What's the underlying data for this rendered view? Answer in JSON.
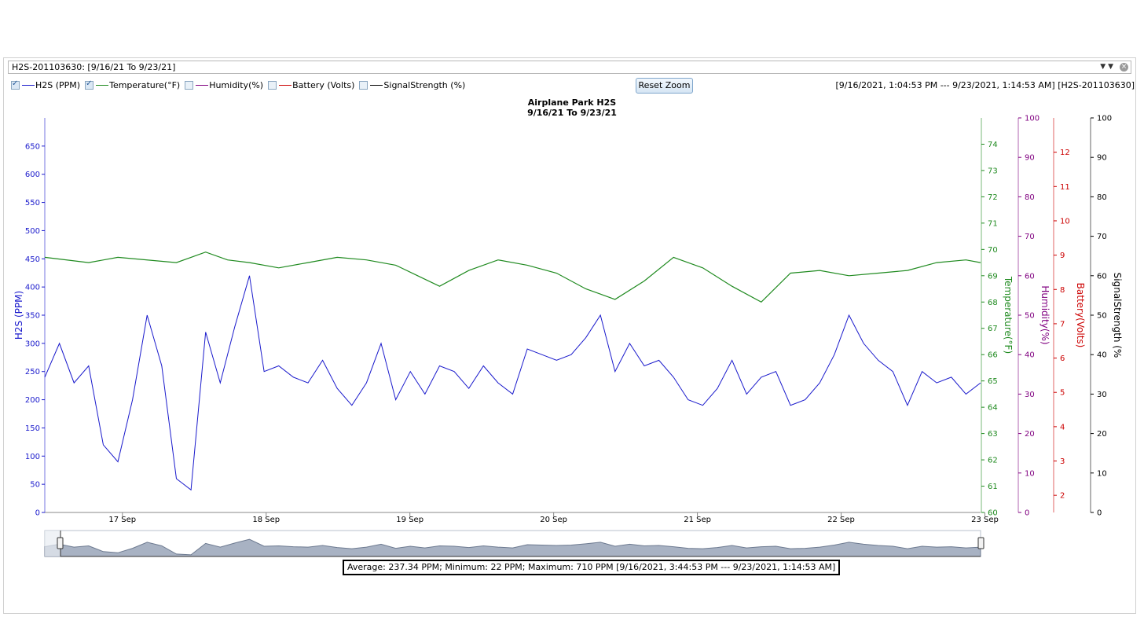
{
  "selector": {
    "value": "H2S-201103630:  [9/16/21 To 9/23/21]"
  },
  "legend": [
    {
      "label": "H2S (PPM)",
      "checked": true,
      "color": "#1a1acc"
    },
    {
      "label": "Temperature(°F)",
      "checked": true,
      "color": "#1f8a1f"
    },
    {
      "label": "Humidity(%)",
      "checked": false,
      "color": "#800080"
    },
    {
      "label": "Battery (Volts)",
      "checked": false,
      "color": "#cc0000"
    },
    {
      "label": "SignalStrength (%)",
      "checked": false,
      "color": "#000000"
    }
  ],
  "reset_label": "Reset Zoom",
  "range_label": "[9/16/2021, 1:04:53 PM ---  9/23/2021, 1:14:53 AM] [H2S-201103630]",
  "stats_label": "Average: 237.34 PPM;  Minimum: 22 PPM;  Maximum: 710 PPM [9/16/2021, 3:44:53 PM ---  9/23/2021, 1:14:53 AM]",
  "chart_data": {
    "type": "line",
    "title": "Airplane Park H2S",
    "subtitle": "9/16/21 To 9/23/21",
    "x_ticks": [
      "17 Sep",
      "18 Sep",
      "19 Sep",
      "20 Sep",
      "21 Sep",
      "22 Sep",
      "23 Sep"
    ],
    "x_range": [
      "9/16/2021 13:04",
      "9/23/2021 01:14"
    ],
    "axes": [
      {
        "id": "h2s",
        "label": "H2S (PPM)",
        "range": [
          0,
          700
        ],
        "ticks": [
          0,
          50,
          100,
          150,
          200,
          250,
          300,
          350,
          400,
          450,
          500,
          550,
          600,
          650
        ],
        "color": "#1a1acc"
      },
      {
        "id": "temp",
        "label": "Temperature(°F)",
        "range": [
          60,
          75
        ],
        "ticks": [
          60,
          61,
          62,
          63,
          64,
          65,
          66,
          67,
          68,
          69,
          70,
          71,
          72,
          73,
          74
        ],
        "color": "#1f8a1f"
      },
      {
        "id": "hum",
        "label": "Humidity(%)",
        "range": [
          0,
          100
        ],
        "ticks": [
          0,
          10,
          20,
          30,
          40,
          50,
          60,
          70,
          80,
          90,
          100
        ],
        "color": "#800080"
      },
      {
        "id": "bat",
        "label": "Battery(Volts)",
        "range": [
          1.5,
          13
        ],
        "ticks": [
          2,
          3,
          4,
          5,
          6,
          7,
          8,
          9,
          10,
          11,
          12
        ],
        "color": "#cc0000"
      },
      {
        "id": "sig",
        "label": "SignalStrength (%",
        "range": [
          0,
          100
        ],
        "ticks": [
          0,
          10,
          20,
          30,
          40,
          50,
          60,
          70,
          80,
          90,
          100
        ],
        "color": "#000000"
      }
    ],
    "series": [
      {
        "name": "H2S (PPM)",
        "axis": "h2s",
        "color": "#1a1acc",
        "x_day": [
          0.0,
          0.1,
          0.2,
          0.3,
          0.4,
          0.5,
          0.6,
          0.7,
          0.8,
          0.9,
          1.0,
          1.1,
          1.2,
          1.3,
          1.4,
          1.5,
          1.6,
          1.7,
          1.8,
          1.9,
          2.0,
          2.1,
          2.2,
          2.3,
          2.4,
          2.5,
          2.6,
          2.7,
          2.8,
          2.9,
          3.0,
          3.1,
          3.2,
          3.3,
          3.4,
          3.5,
          3.6,
          3.7,
          3.8,
          3.9,
          4.0,
          4.1,
          4.2,
          4.3,
          4.4,
          4.5,
          4.6,
          4.7,
          4.8,
          4.9,
          5.0,
          5.1,
          5.2,
          5.3,
          5.4,
          5.5,
          5.6,
          5.7,
          5.8,
          5.9,
          6.0,
          6.1,
          6.2,
          6.3,
          6.4
        ],
        "values": [
          240,
          300,
          230,
          260,
          120,
          90,
          200,
          350,
          260,
          60,
          40,
          320,
          230,
          330,
          420,
          250,
          260,
          240,
          230,
          270,
          220,
          190,
          230,
          300,
          200,
          250,
          210,
          260,
          250,
          220,
          260,
          230,
          210,
          290,
          280,
          270,
          280,
          310,
          350,
          250,
          300,
          260,
          270,
          240,
          200,
          190,
          220,
          270,
          210,
          240,
          250,
          190,
          200,
          230,
          280,
          350,
          300,
          270,
          250,
          190,
          250,
          230,
          240,
          210,
          230
        ]
      },
      {
        "name": "Temperature(°F)",
        "axis": "temp",
        "color": "#1f8a1f",
        "x_day": [
          0.0,
          0.3,
          0.5,
          0.9,
          1.0,
          1.1,
          1.25,
          1.4,
          1.6,
          1.8,
          2.0,
          2.2,
          2.4,
          2.55,
          2.7,
          2.9,
          3.1,
          3.3,
          3.5,
          3.7,
          3.9,
          4.1,
          4.3,
          4.5,
          4.7,
          4.9,
          5.1,
          5.3,
          5.5,
          5.7,
          5.9,
          6.1,
          6.3,
          6.4
        ],
        "values": [
          69.7,
          69.5,
          69.7,
          69.5,
          69.7,
          69.9,
          69.6,
          69.5,
          69.3,
          69.5,
          69.7,
          69.6,
          69.4,
          69.0,
          68.6,
          69.2,
          69.6,
          69.4,
          69.1,
          68.5,
          68.1,
          68.8,
          69.7,
          69.3,
          68.6,
          68.0,
          69.1,
          69.2,
          69.0,
          69.1,
          69.2,
          69.5,
          69.6,
          69.5
        ]
      }
    ]
  }
}
